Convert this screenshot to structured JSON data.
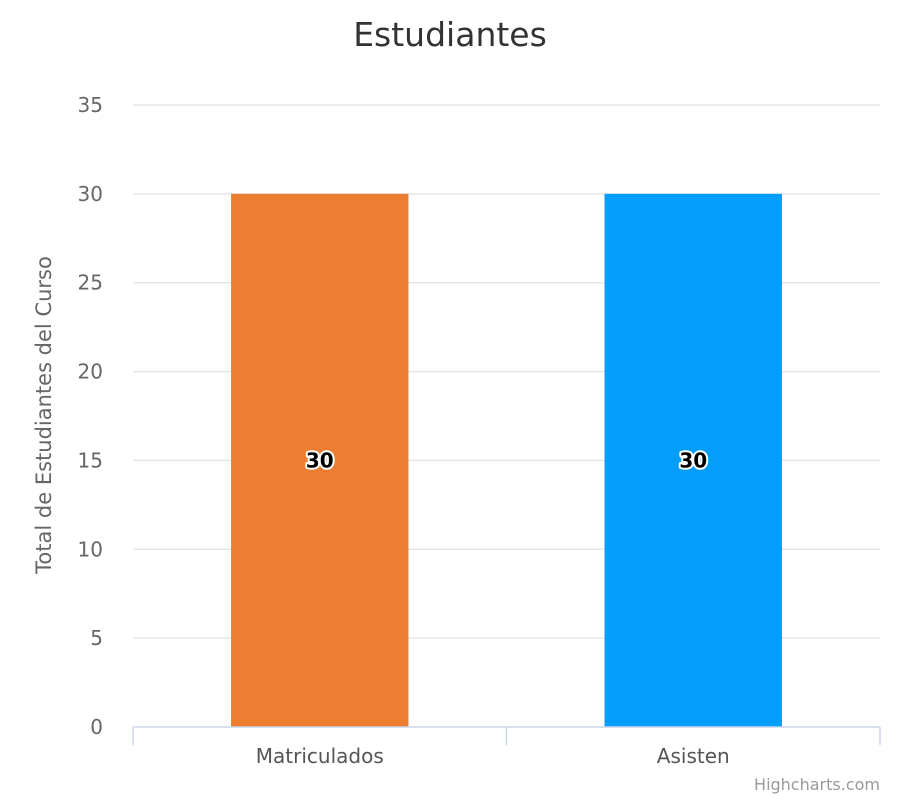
{
  "chart_data": {
    "type": "bar",
    "title": "Estudiantes",
    "xlabel": "",
    "ylabel": "Total de Estudiantes del Curso",
    "categories": [
      "Matriculados",
      "Asisten"
    ],
    "values": [
      30,
      30
    ],
    "bar_colors": [
      "#ED7D31",
      "#039DFC"
    ],
    "data_labels": [
      "30",
      "30"
    ],
    "ylim": [
      0,
      35
    ],
    "y_ticks": [
      0,
      5,
      10,
      15,
      20,
      25,
      30,
      35
    ],
    "grid": true,
    "legend": "none"
  },
  "credits": "Highcharts.com",
  "colors": {
    "grid": "#e6e6e6",
    "axis_line": "#ccd6eb"
  }
}
